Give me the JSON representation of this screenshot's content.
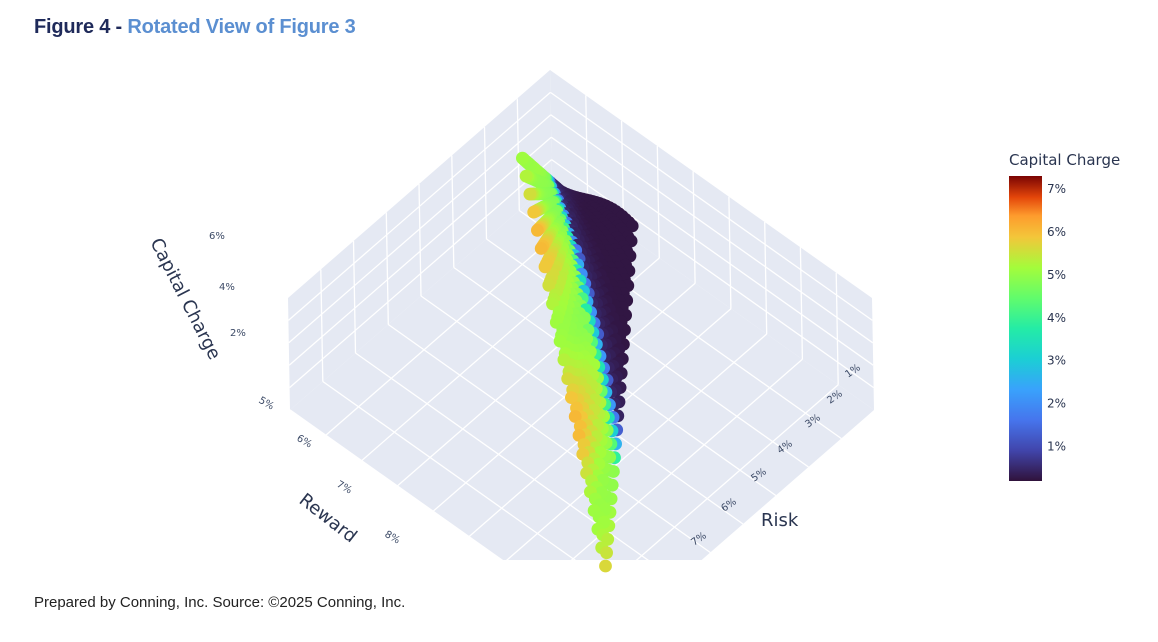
{
  "title_part1": "Figure 4 - ",
  "title_part2": "Rotated View of Figure 3",
  "footer": "Prepared by Conning, Inc. Source: ©2025 Conning, Inc.",
  "chart_data": {
    "type": "scatter3d",
    "z_axis": {
      "title": "Capital Charge",
      "ticks": [
        "2%",
        "4%",
        "6%"
      ]
    },
    "reward_axis": {
      "title": "Reward",
      "ticks": [
        "5%",
        "6%",
        "7%",
        "8%"
      ]
    },
    "risk_axis": {
      "title": "Risk",
      "ticks": [
        "1%",
        "2%",
        "3%",
        "4%",
        "5%",
        "6%",
        "7%"
      ]
    },
    "colorbar": {
      "title": "Capital Charge",
      "ticks": [
        "1%",
        "2%",
        "3%",
        "4%",
        "5%",
        "6%",
        "7%"
      ],
      "range": [
        0.2,
        7.3
      ],
      "colorscale": "turbo"
    },
    "reward_range": [
      4.5,
      8.5
    ],
    "risk_range": [
      0.5,
      7.5
    ],
    "capital_charge_range": [
      0,
      7.3
    ]
  }
}
